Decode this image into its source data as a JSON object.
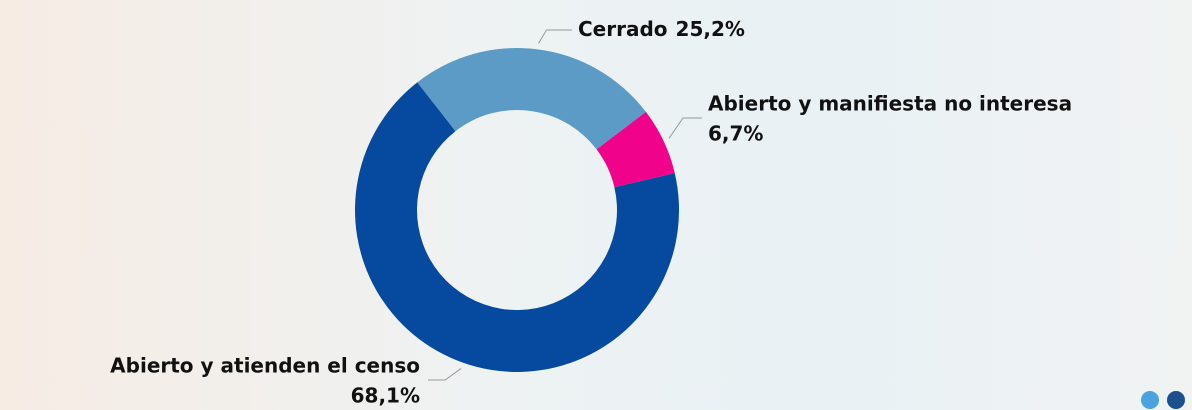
{
  "chart_data": {
    "type": "donut",
    "categories": [
      "Cerrado",
      "Abierto y manifiesta no interesa",
      "Abierto y atienden el censo"
    ],
    "values": [
      25.2,
      6.7,
      68.1
    ],
    "value_labels": [
      "25,2%",
      "6,7%",
      "68,1%"
    ],
    "colors": [
      "#5b9bc6",
      "#f0038a",
      "#054a9e"
    ]
  }
}
